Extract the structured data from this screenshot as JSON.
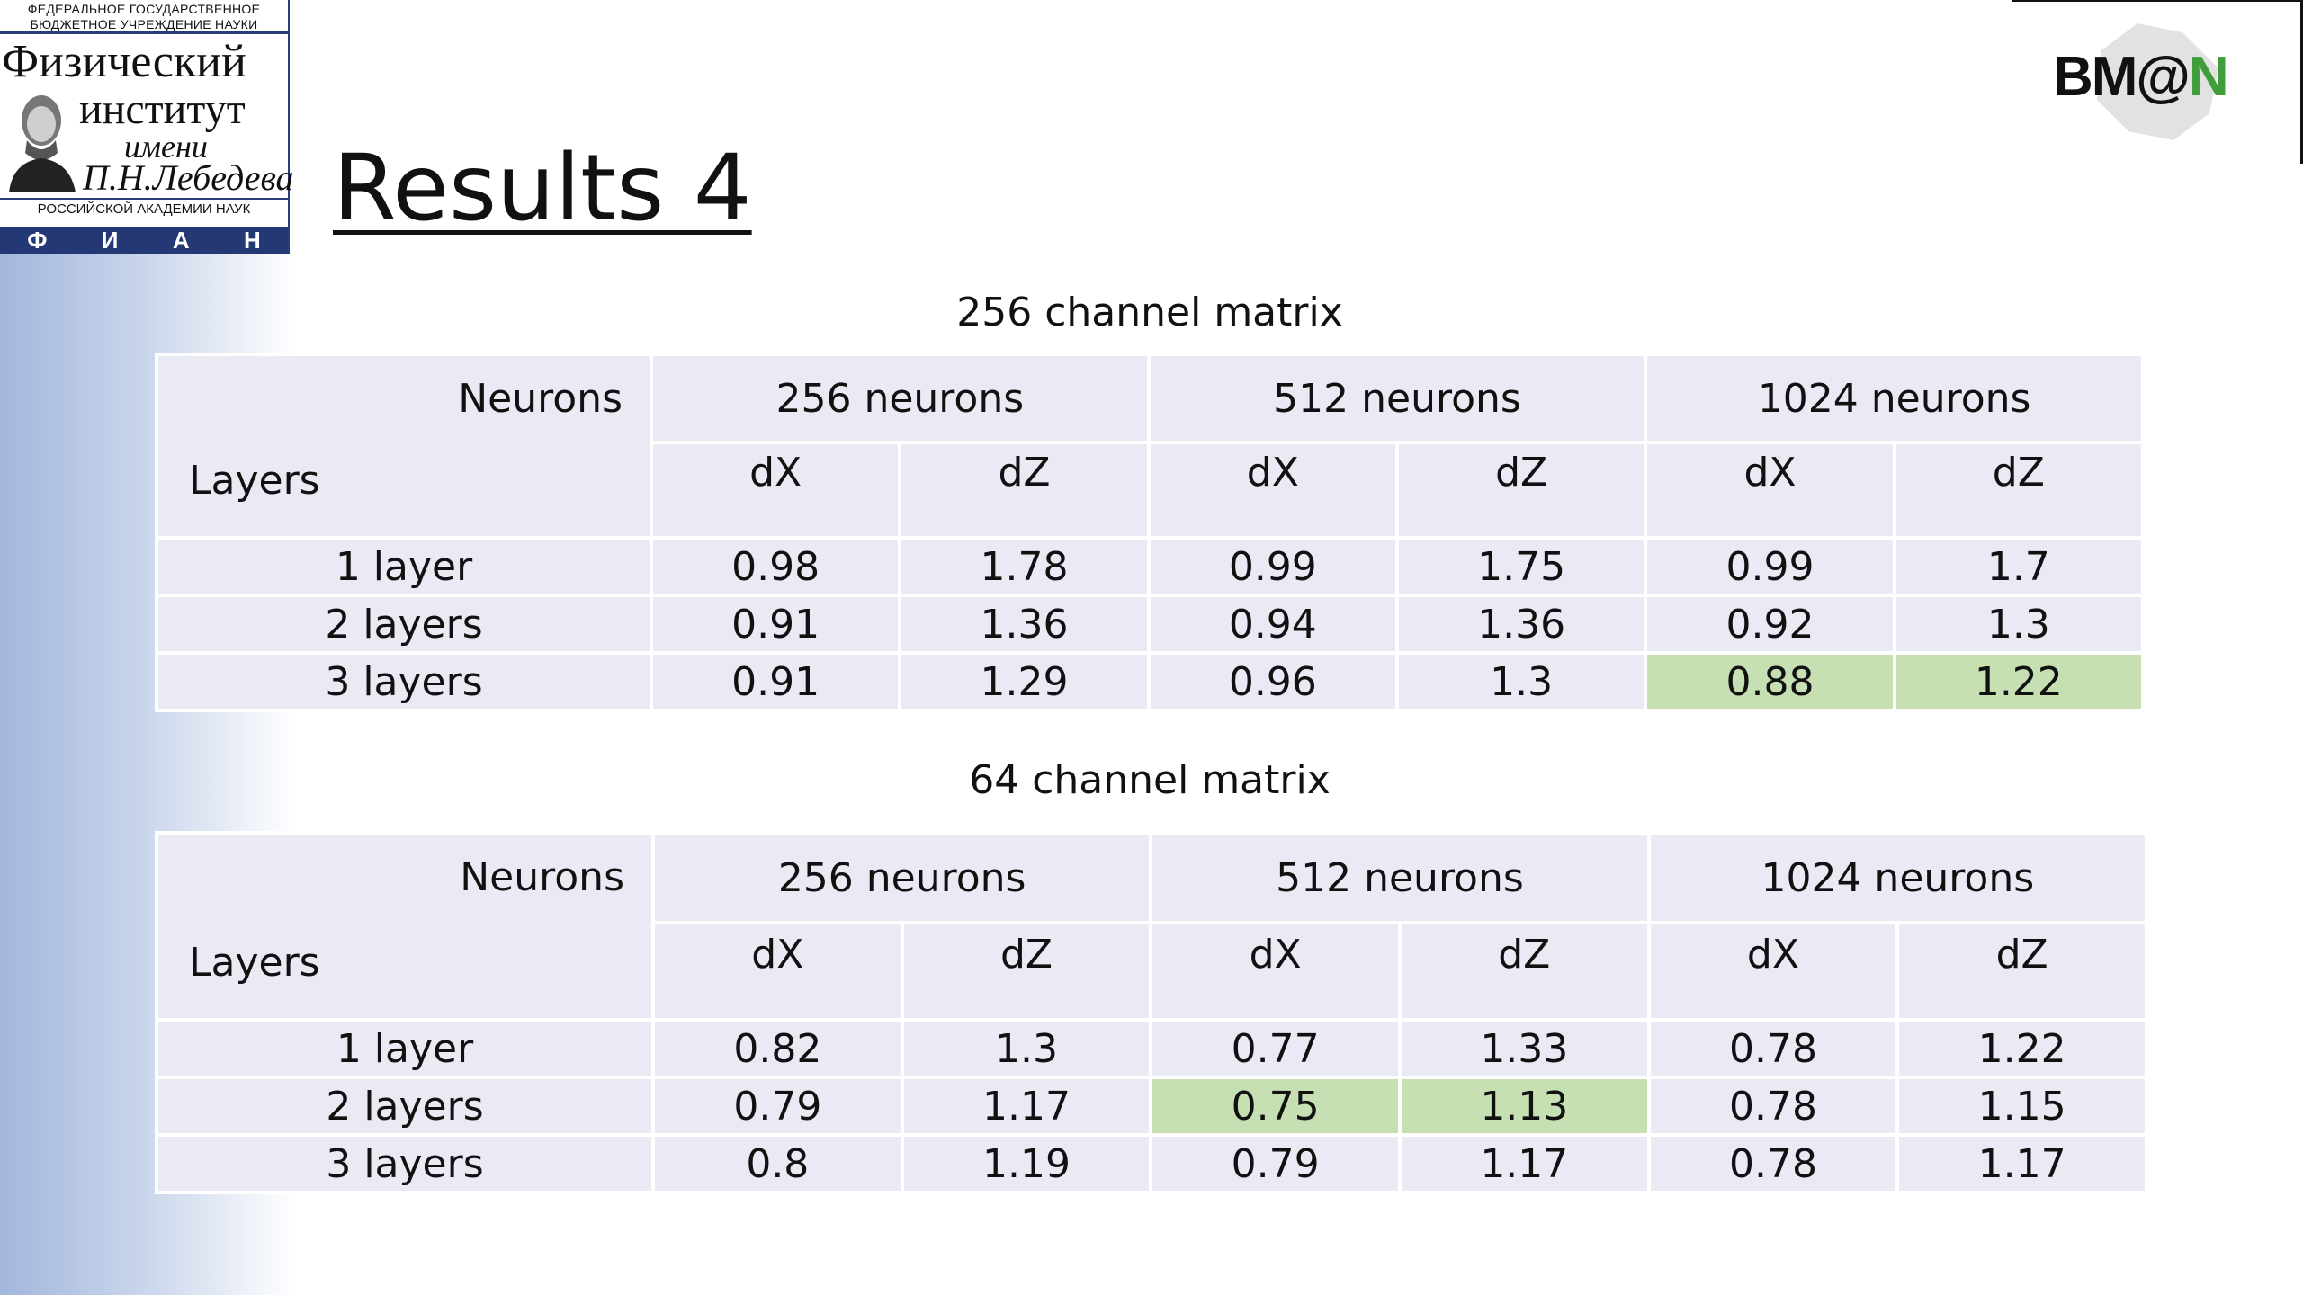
{
  "logo": {
    "top_line1": "ФЕДЕРАЛЬНОЕ ГОСУДАРСТВЕННОЕ",
    "top_line2": "БЮДЖЕТНОЕ УЧРЕЖДЕНИЕ НАУКИ",
    "line1": "Физический",
    "line2": "институт",
    "line3": "имени",
    "line4": "П.Н.Лебедева",
    "bottom_line": "РОССИЙСКОЙ АКАДЕМИИ НАУК",
    "letters": [
      "Ф",
      "И",
      "А",
      "Н"
    ]
  },
  "bman_logo": {
    "text_prefix": "BM@",
    "text_suffix": "N",
    "accent_color": "#3f9e3a"
  },
  "title": "Results 4",
  "tables": [
    {
      "caption": "256 channel matrix",
      "corner_top": "Neurons",
      "corner_bottom": "Layers",
      "groups": [
        "256 neurons",
        "512 neurons",
        "1024 neurons"
      ],
      "subheaders": [
        "dX",
        "dZ",
        "dX",
        "dZ",
        "dX",
        "dZ"
      ],
      "rows": [
        {
          "label": "1 layer",
          "values": [
            "0.98",
            "1.78",
            "0.99",
            "1.75",
            "0.99",
            "1.7"
          ]
        },
        {
          "label": "2 layers",
          "values": [
            "0.91",
            "1.36",
            "0.94",
            "1.36",
            "0.92",
            "1.3"
          ]
        },
        {
          "label": "3 layers",
          "values": [
            "0.91",
            "1.29",
            "0.96",
            "1.3",
            "0.88",
            "1.22"
          ]
        }
      ],
      "highlight": {
        "row": 2,
        "cols": [
          4,
          5
        ],
        "color": "#c6e0b3"
      }
    },
    {
      "caption": "64 channel matrix",
      "corner_top": "Neurons",
      "corner_bottom": "Layers",
      "groups": [
        "256 neurons",
        "512 neurons",
        "1024 neurons"
      ],
      "subheaders": [
        "dX",
        "dZ",
        "dX",
        "dZ",
        "dX",
        "dZ"
      ],
      "rows": [
        {
          "label": "1 layer",
          "values": [
            "0.82",
            "1.3",
            "0.77",
            "1.33",
            "0.78",
            "1.22"
          ]
        },
        {
          "label": "2 layers",
          "values": [
            "0.79",
            "1.17",
            "0.75",
            "1.13",
            "0.78",
            "1.15"
          ]
        },
        {
          "label": "3 layers",
          "values": [
            "0.8",
            "1.19",
            "0.79",
            "1.17",
            "0.78",
            "1.17"
          ]
        }
      ],
      "highlight": {
        "row": 1,
        "cols": [
          2,
          3
        ],
        "color": "#c6e0b3"
      }
    }
  ]
}
